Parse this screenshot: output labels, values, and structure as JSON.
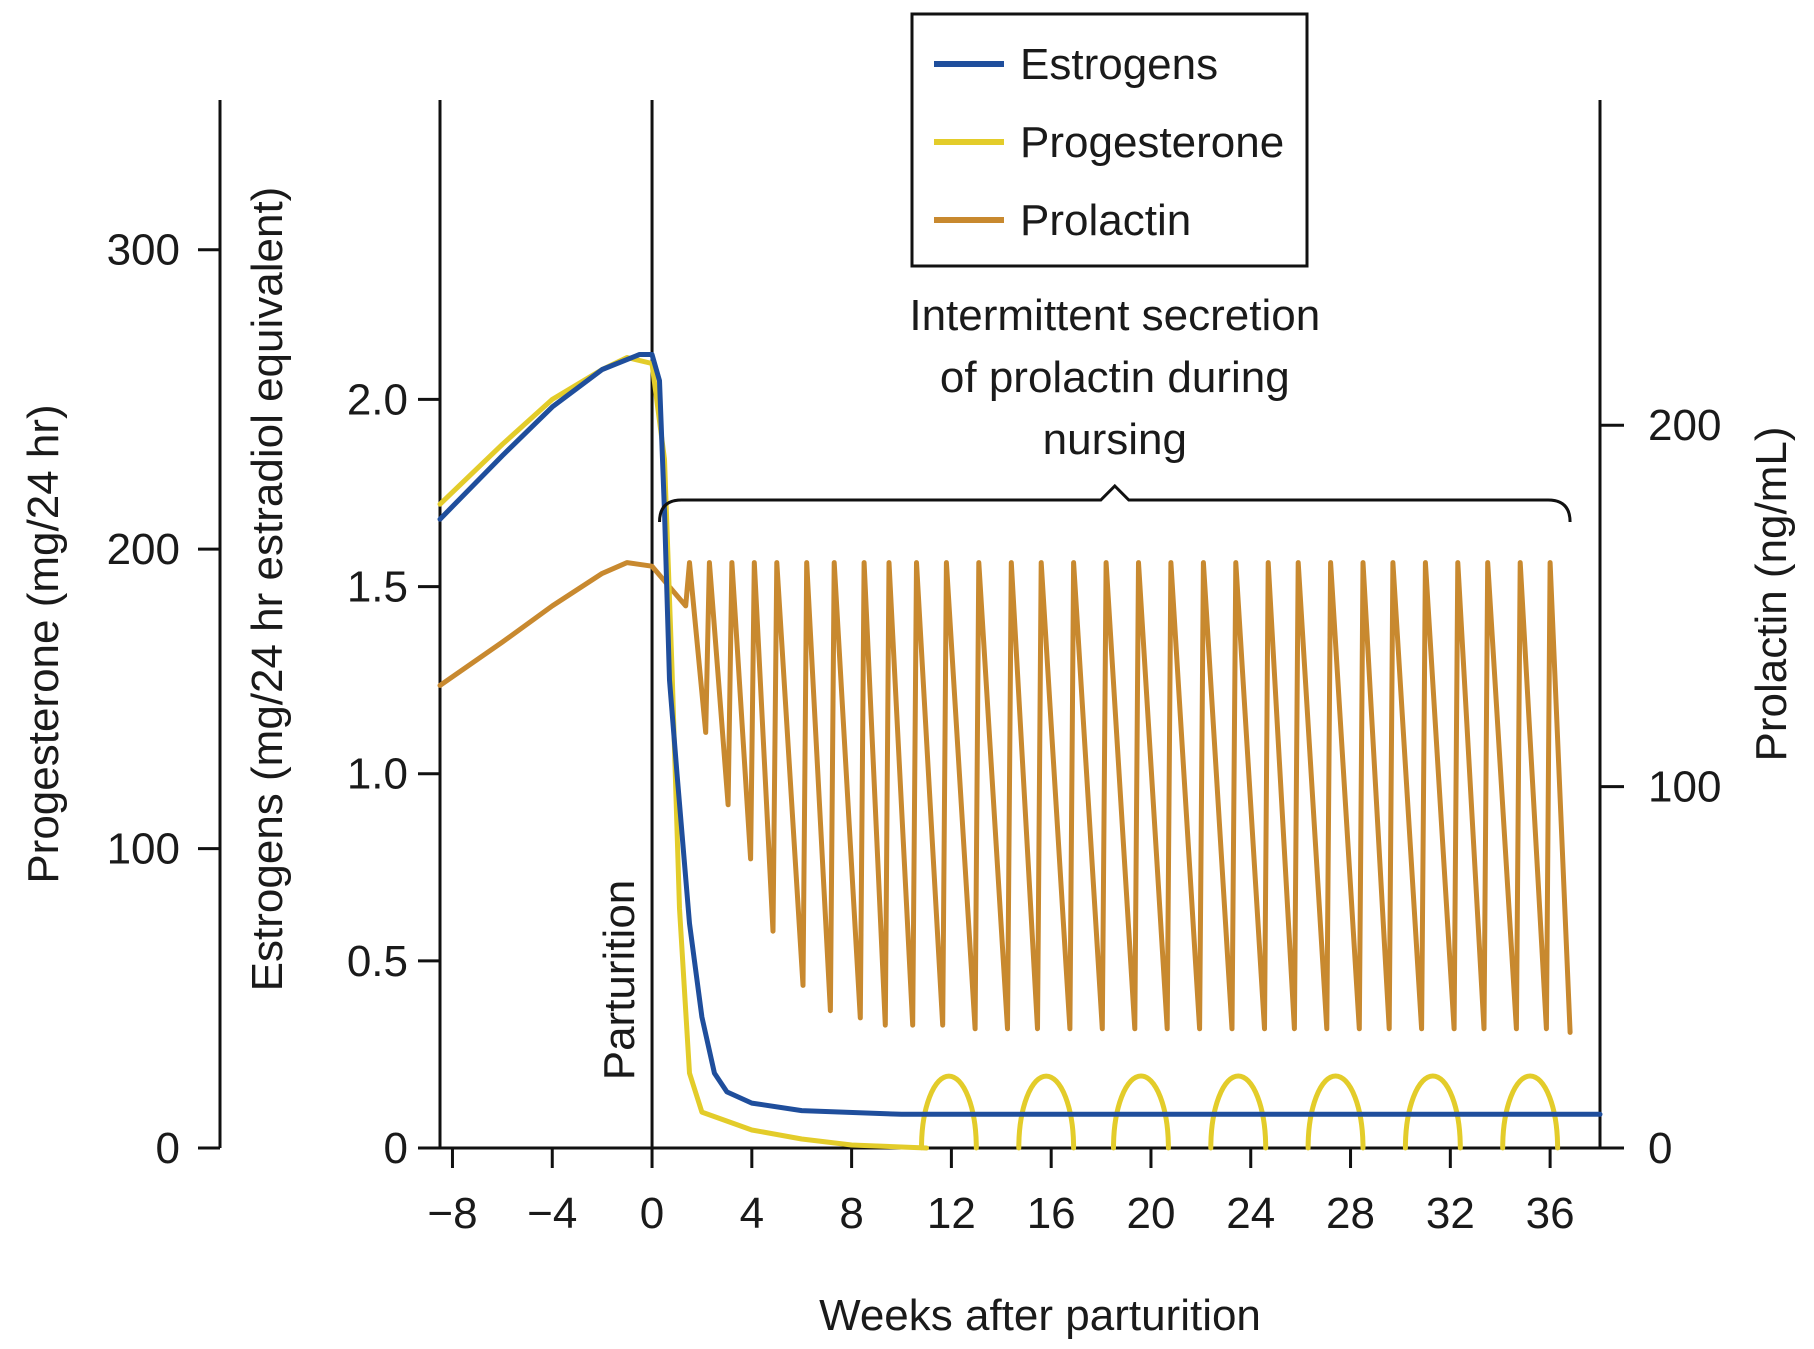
{
  "chart_data": {
    "type": "line",
    "title": "",
    "xlabel": "Weeks after parturition",
    "xlim": [
      -8.5,
      38
    ],
    "x_ticks": [
      -8,
      -4,
      0,
      4,
      8,
      12,
      16,
      20,
      24,
      28,
      32,
      36
    ],
    "x_tick_labels": [
      "−8",
      "−4",
      "0",
      "4",
      "8",
      "12",
      "16",
      "20",
      "24",
      "28",
      "32",
      "36"
    ],
    "axes": {
      "progesterone": {
        "label": "Progesterone (mg/24 hr)",
        "ylim": [
          0,
          350
        ],
        "ticks": [
          0,
          100,
          200,
          300
        ],
        "tick_labels": [
          "0",
          "100",
          "200",
          "300"
        ]
      },
      "estrogens": {
        "label": "Estrogens (mg/24 hr estradiol equivalent)",
        "ylim": [
          0,
          2.8
        ],
        "ticks": [
          0,
          0.5,
          1.0,
          1.5,
          2.0
        ],
        "tick_labels": [
          "0",
          "0.5",
          "1.0",
          "1.5",
          "2.0"
        ]
      },
      "prolactin": {
        "label": "Prolactin (ng/mL)",
        "ylim": [
          0,
          290
        ],
        "ticks": [
          0,
          100,
          200
        ],
        "tick_labels": [
          "0",
          "100",
          "200"
        ]
      }
    },
    "legend": {
      "position": "top-center",
      "entries": [
        {
          "name": "Estrogens",
          "color": "#1f4e9c"
        },
        {
          "name": "Progesterone",
          "color": "#e3cc2a"
        },
        {
          "name": "Prolactin",
          "color": "#c8892f"
        }
      ]
    },
    "series": [
      {
        "name": "Estrogens",
        "axis": "estrogens",
        "color": "#1f4e9c",
        "points": [
          [
            -8.5,
            1.68
          ],
          [
            -6,
            1.85
          ],
          [
            -4,
            1.98
          ],
          [
            -2,
            2.08
          ],
          [
            -0.5,
            2.12
          ],
          [
            0,
            2.12
          ],
          [
            0.3,
            2.05
          ],
          [
            0.5,
            1.7
          ],
          [
            0.7,
            1.25
          ],
          [
            1,
            1.0
          ],
          [
            1.5,
            0.6
          ],
          [
            2,
            0.35
          ],
          [
            2.5,
            0.2
          ],
          [
            3,
            0.15
          ],
          [
            4,
            0.12
          ],
          [
            6,
            0.1
          ],
          [
            10,
            0.09
          ],
          [
            20,
            0.09
          ],
          [
            38,
            0.09
          ]
        ]
      },
      {
        "name": "Progesterone",
        "axis": "progesterone",
        "color": "#e3cc2a",
        "points": [
          [
            -8.5,
            215
          ],
          [
            -6,
            235
          ],
          [
            -4,
            250
          ],
          [
            -2,
            260
          ],
          [
            -1,
            264
          ],
          [
            0,
            262
          ],
          [
            0.5,
            230
          ],
          [
            0.8,
            160
          ],
          [
            1.1,
            80
          ],
          [
            1.5,
            25
          ],
          [
            2,
            12
          ],
          [
            4,
            6
          ],
          [
            6,
            3
          ],
          [
            8,
            1
          ],
          [
            11,
            0
          ]
        ],
        "cyclic_humps": {
          "centers": [
            11.9,
            15.8,
            19.6,
            23.5,
            27.4,
            31.3,
            35.2
          ],
          "half_width_weeks": 1.1,
          "peak": 24
        }
      },
      {
        "name": "Prolactin",
        "axis": "prolactin",
        "color": "#c8892f",
        "points": [
          [
            -8.5,
            128
          ],
          [
            -6,
            140
          ],
          [
            -4,
            150
          ],
          [
            -2,
            159
          ],
          [
            -1,
            162
          ],
          [
            0,
            161
          ]
        ],
        "nursing_spikes": {
          "peak_times": [
            1.5,
            2.3,
            3.2,
            4.1,
            5.0,
            6.2,
            7.3,
            8.5,
            9.5,
            10.6,
            11.8,
            13.1,
            14.4,
            15.6,
            16.9,
            18.2,
            19.5,
            20.8,
            22.1,
            23.4,
            24.7,
            25.9,
            27.2,
            28.5,
            29.7,
            31.0,
            32.3,
            33.5,
            34.8,
            36.0
          ],
          "peak_value": 162,
          "trough_values": [
            150,
            115,
            95,
            80,
            60,
            45,
            38,
            36,
            34,
            34,
            34,
            33,
            33,
            33,
            33,
            33,
            33,
            33,
            33,
            33,
            33,
            33,
            33,
            33,
            33,
            33,
            33,
            33,
            33,
            33,
            33
          ],
          "end": [
            36.8,
            32
          ]
        }
      }
    ],
    "annotations": {
      "nursing_line1": "Intermittent secretion",
      "nursing_line2": "of prolactin during",
      "nursing_line3": "nursing",
      "nursing_bracket_x": [
        0.3,
        36.8
      ],
      "parturition_label": "Parturition",
      "parturition_x": 0
    }
  }
}
